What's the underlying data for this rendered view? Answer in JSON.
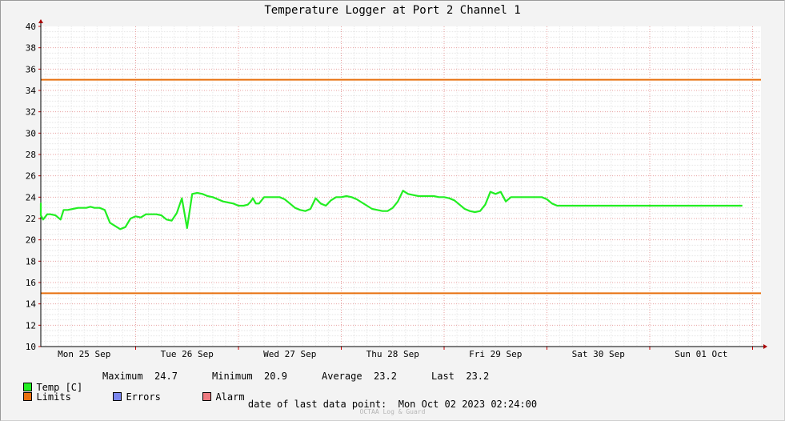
{
  "chart_data": {
    "type": "line",
    "title": "Temperature Logger at Port 2 Channel 1",
    "ylim": [
      10,
      40
    ],
    "y_ticks": [
      "10",
      "12",
      "14",
      "16",
      "18",
      "20",
      "22",
      "24",
      "26",
      "28",
      "30",
      "32",
      "34",
      "36",
      "38",
      "40"
    ],
    "x_range_days": [
      0,
      7
    ],
    "x_tick_labels": [
      "Mon 25 Sep",
      "Tue 26 Sep",
      "Wed 27 Sep",
      "Thu 28 Sep",
      "Fri 29 Sep",
      "Sat 30 Sep",
      "Sun 01 Oct"
    ],
    "grid": true,
    "limits": {
      "name": "Limits",
      "upper": 35,
      "lower": 15,
      "color": "#e8700e"
    },
    "series": [
      {
        "name": "Temp [C]",
        "color": "#22ee22",
        "x": [
          -0.18,
          -0.12,
          -0.07,
          -0.02,
          0.02,
          0.07,
          0.1,
          0.14,
          0.17,
          0.22,
          0.27,
          0.3,
          0.34,
          0.39,
          0.44,
          0.48,
          0.52,
          0.56,
          0.6,
          0.65,
          0.7,
          0.75,
          0.8,
          0.85,
          0.9,
          0.95,
          1.0,
          1.05,
          1.1,
          1.15,
          1.2,
          1.25,
          1.3,
          1.35,
          1.4,
          1.45,
          1.5,
          1.55,
          1.6,
          1.65,
          1.7,
          1.75,
          1.8,
          1.85,
          1.9,
          1.95,
          2.0,
          2.05,
          2.09,
          2.12,
          2.14,
          2.17,
          2.2,
          2.25,
          2.3,
          2.35,
          2.4,
          2.45,
          2.5,
          2.55,
          2.6,
          2.65,
          2.7,
          2.75,
          2.8,
          2.85,
          2.9,
          2.95,
          3.0,
          3.05,
          3.1,
          3.15,
          3.2,
          3.25,
          3.3,
          3.35,
          3.4,
          3.45,
          3.5,
          3.55,
          3.6,
          3.65,
          3.7,
          3.75,
          3.8,
          3.85,
          3.9,
          3.95,
          4.0,
          4.05,
          4.1,
          4.15,
          4.2,
          4.25,
          4.3,
          4.35,
          4.4,
          4.45,
          4.5,
          4.55,
          4.6,
          4.65,
          4.7,
          4.75,
          4.8,
          4.85,
          4.9,
          4.95,
          5.0,
          5.05,
          5.1,
          5.15,
          5.2,
          5.25,
          5.3,
          5.35,
          5.4,
          5.45,
          5.5,
          5.55,
          5.6,
          5.65,
          5.7,
          5.75,
          5.8,
          5.85,
          5.9,
          5.95,
          6.0,
          6.05,
          6.1,
          6.15,
          6.2,
          6.25,
          6.3,
          6.35,
          6.4,
          6.45,
          6.5,
          6.55,
          6.6,
          6.65,
          6.7,
          6.75,
          6.8,
          6.85,
          6.9
        ],
        "values": [
          23.0,
          22.9,
          23.0,
          23.0,
          23.4,
          22.3,
          21.9,
          22.4,
          22.4,
          22.3,
          21.9,
          22.8,
          22.8,
          22.9,
          23.0,
          23.0,
          23.0,
          23.1,
          23.0,
          23.0,
          22.8,
          21.6,
          21.3,
          21.0,
          21.2,
          22.0,
          22.2,
          22.1,
          22.4,
          22.4,
          22.4,
          22.3,
          21.9,
          21.8,
          22.5,
          23.9,
          21.1,
          24.3,
          24.4,
          24.3,
          24.1,
          24.0,
          23.8,
          23.6,
          23.5,
          23.4,
          23.2,
          23.2,
          23.3,
          23.6,
          23.9,
          23.4,
          23.4,
          24.0,
          24.0,
          24.0,
          24.0,
          23.8,
          23.4,
          23.0,
          22.8,
          22.7,
          22.9,
          23.9,
          23.4,
          23.2,
          23.7,
          24.0,
          24.0,
          24.1,
          24.0,
          23.8,
          23.5,
          23.2,
          22.9,
          22.8,
          22.7,
          22.7,
          23.0,
          23.6,
          24.6,
          24.3,
          24.2,
          24.1,
          24.1,
          24.1,
          24.1,
          24.0,
          24.0,
          23.9,
          23.7,
          23.3,
          22.9,
          22.7,
          22.6,
          22.7,
          23.3,
          24.5,
          24.3,
          24.5,
          23.6,
          24.0,
          24.0,
          24.0,
          24.0,
          24.0,
          24.0,
          24.0,
          23.8,
          23.4,
          23.2,
          23.2,
          23.2,
          23.2,
          23.2,
          23.2,
          23.2,
          23.2,
          23.2,
          23.2,
          23.2,
          23.2,
          23.2,
          23.2,
          23.2,
          23.2,
          23.2,
          23.2,
          23.2,
          23.2,
          23.2,
          23.2,
          23.2,
          23.2,
          23.2,
          23.2,
          23.2,
          23.2,
          23.2,
          23.2,
          23.2,
          23.2,
          23.2,
          23.2,
          23.2,
          23.2,
          23.2
        ]
      }
    ]
  },
  "legend": {
    "temp_label": "Temp [C]",
    "max_label": "Maximum",
    "max_value": "24.7",
    "min_label": "Minimum",
    "min_value": "20.9",
    "avg_label": "Average",
    "avg_value": "23.2",
    "last_label": "Last",
    "last_value": "23.2",
    "limits_label": "Limits",
    "errors_label": "Errors",
    "alarm_label": "Alarm",
    "colors": {
      "temp": "#22ee22",
      "limits": "#e8700e",
      "errors": "#7a86ee",
      "alarm": "#ee7a80"
    }
  },
  "footer": {
    "label": "date of last data point:",
    "value": "Mon Oct 02 2023 02:24:00"
  },
  "watermark": "OCTAA Log & Guard"
}
